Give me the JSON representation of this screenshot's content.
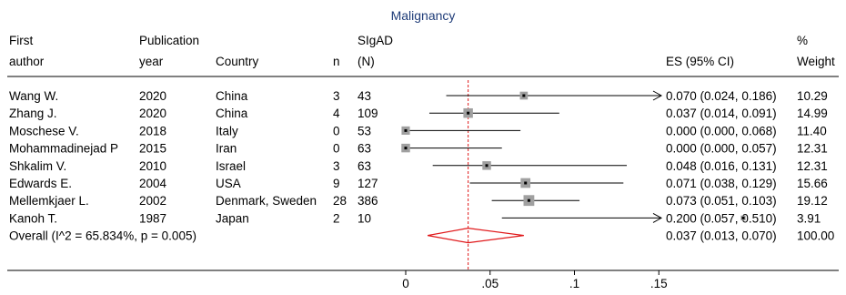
{
  "chart_data": {
    "type": "forest",
    "title": "Malignancy",
    "headers": {
      "author": [
        "First",
        "author"
      ],
      "year": [
        "Publication",
        "year"
      ],
      "country": [
        "Country"
      ],
      "n": [
        "n"
      ],
      "sigad": [
        "SIgAD",
        "(N)"
      ],
      "es": [
        "ES (95% CI)"
      ],
      "weight": [
        "%",
        "Weight"
      ]
    },
    "studies": [
      {
        "author": "Wang W.",
        "year": "2020",
        "country": "China",
        "n": "3",
        "sigad": "43",
        "es": 0.07,
        "lo": 0.024,
        "hi": 0.186,
        "es_text": "0.070 (0.024, 0.186)",
        "weight": "10.29"
      },
      {
        "author": "Zhang J.",
        "year": "2020",
        "country": "China",
        "n": "4",
        "sigad": "109",
        "es": 0.037,
        "lo": 0.014,
        "hi": 0.091,
        "es_text": "0.037 (0.014, 0.091)",
        "weight": "14.99"
      },
      {
        "author": "Moschese V.",
        "year": "2018",
        "country": "Italy",
        "n": "0",
        "sigad": "53",
        "es": 0.0,
        "lo": 0.0,
        "hi": 0.068,
        "es_text": "0.000 (0.000, 0.068)",
        "weight": "11.40"
      },
      {
        "author": "Mohammadinejad P",
        "year": "2015",
        "country": "Iran",
        "n": "0",
        "sigad": "63",
        "es": 0.0,
        "lo": 0.0,
        "hi": 0.057,
        "es_text": "0.000 (0.000, 0.057)",
        "weight": "12.31"
      },
      {
        "author": "Shkalim V.",
        "year": "2010",
        "country": "Israel",
        "n": "3",
        "sigad": "63",
        "es": 0.048,
        "lo": 0.016,
        "hi": 0.131,
        "es_text": "0.048 (0.016, 0.131)",
        "weight": "12.31"
      },
      {
        "author": "Edwards E.",
        "year": "2004",
        "country": "USA",
        "n": "9",
        "sigad": "127",
        "es": 0.071,
        "lo": 0.038,
        "hi": 0.129,
        "es_text": "0.071 (0.038, 0.129)",
        "weight": "15.66"
      },
      {
        "author": "Mellemkjaer L.",
        "year": "2002",
        "country": "Denmark, Sweden",
        "n": "28",
        "sigad": "386",
        "es": 0.073,
        "lo": 0.051,
        "hi": 0.103,
        "es_text": "0.073 (0.051, 0.103)",
        "weight": "19.12"
      },
      {
        "author": "Kanoh T.",
        "year": "1987",
        "country": "Japan",
        "n": "2",
        "sigad": "10",
        "es": 0.2,
        "lo": 0.057,
        "hi": 0.51,
        "es_text": "0.200 (0.057, 0.510)",
        "weight": "3.91"
      }
    ],
    "overall": {
      "label": "Overall  (I^2 = 65.834%, p = 0.005)",
      "es": 0.037,
      "lo": 0.013,
      "hi": 0.07,
      "es_text": "0.037 (0.013, 0.070)",
      "weight": "100.00"
    },
    "x_axis": {
      "min": 0,
      "max": 0.15,
      "ticks": [
        0,
        0.05,
        0.1,
        0.15
      ],
      "tick_labels": [
        "0",
        ".05",
        ".1",
        ".15"
      ]
    },
    "reference_line": 0.037,
    "colors": {
      "reference_line": "#e0191b",
      "diamond": "#e0191b",
      "title": "#1f3c78",
      "marker_box": "#a0a0a0",
      "lines": "#000000"
    }
  }
}
